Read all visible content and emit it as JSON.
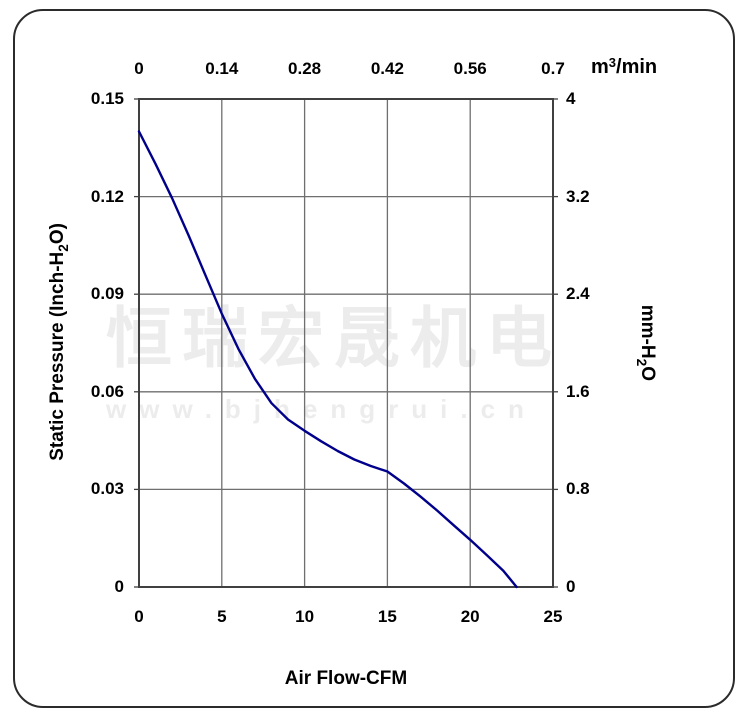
{
  "watermark": {
    "company": "恒瑞宏晟机电",
    "website": "www.bjhengrui.cn"
  },
  "chart_data": {
    "type": "line",
    "title": "",
    "description": "Fan static pressure vs air flow performance curve",
    "grid": true,
    "legend": "none",
    "xlim": [
      0,
      25
    ],
    "ylim": [
      0,
      0.15
    ],
    "axes": {
      "bottom": {
        "title": "Air Flow-CFM",
        "ticks": [
          "0",
          "5",
          "10",
          "15",
          "20",
          "25"
        ],
        "range": [
          0,
          25
        ]
      },
      "top": {
        "unit_pre": "m",
        "unit_sup": "3",
        "unit_post": "/min",
        "ticks": [
          "0",
          "0.14",
          "0.28",
          "0.42",
          "0.56",
          "0.7"
        ],
        "range": [
          0,
          0.7
        ]
      },
      "left": {
        "title_pre": "Static Pressure (Inch-H",
        "title_sub": "2",
        "title_post": "O)",
        "ticks": [
          "0.15",
          "0.12",
          "0.09",
          "0.06",
          "0.03",
          "0"
        ],
        "range": [
          0,
          0.15
        ]
      },
      "right": {
        "title_pre": "mm-H",
        "title_sub": "2",
        "title_post": "O",
        "ticks": [
          "4",
          "3.2",
          "2.4",
          "1.6",
          "0.8",
          "0"
        ],
        "range": [
          0,
          4
        ]
      }
    },
    "series": [
      {
        "name": "static-pressure-curve",
        "color": "#00008B",
        "x_unit": "CFM",
        "y_unit": "Inch-H2O",
        "points": [
          [
            0,
            0.14
          ],
          [
            1,
            0.13
          ],
          [
            2,
            0.1195
          ],
          [
            3,
            0.108
          ],
          [
            4,
            0.096
          ],
          [
            5,
            0.084
          ],
          [
            6,
            0.0732
          ],
          [
            7,
            0.064
          ],
          [
            8,
            0.0565
          ],
          [
            9,
            0.0515
          ],
          [
            10,
            0.048
          ],
          [
            11,
            0.0448
          ],
          [
            12,
            0.0418
          ],
          [
            13,
            0.0392
          ],
          [
            14,
            0.0372
          ],
          [
            15,
            0.0355
          ],
          [
            16,
            0.0318
          ],
          [
            17,
            0.0278
          ],
          [
            18,
            0.0235
          ],
          [
            19,
            0.019
          ],
          [
            20,
            0.0145
          ],
          [
            21,
            0.0098
          ],
          [
            22,
            0.005
          ],
          [
            22.8,
            0
          ]
        ]
      }
    ],
    "colors": {
      "curve": "#00008B",
      "grid": "#6f6f6f",
      "frame": "#404040",
      "watermark": "#ececec",
      "text": "#000000"
    }
  }
}
